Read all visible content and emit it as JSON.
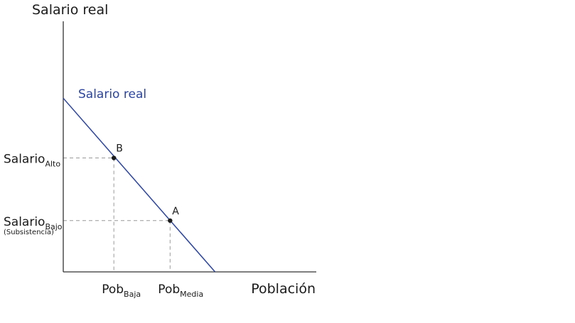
{
  "chart_data": {
    "type": "line",
    "title": "",
    "ylabel": "Salario real",
    "xlabel": "Población",
    "grid": false,
    "colors": {
      "line": "#2b44a0",
      "axis": "#333333",
      "guide": "#999999",
      "point": "#1a1a1a"
    },
    "series": [
      {
        "name": "Salario real",
        "x": [
          0,
          2.7
        ],
        "y": [
          3.05,
          0
        ]
      }
    ],
    "points": [
      {
        "label": "B",
        "x": 0.9,
        "y": 2.0
      },
      {
        "label": "A",
        "x": 1.9,
        "y": 0.9
      }
    ],
    "y_ticks": [
      {
        "main": "Salario",
        "sub": "Alto",
        "note": "",
        "y": 2.0
      },
      {
        "main": "Salario",
        "sub": "Bajo",
        "note": "(Subsistencia)",
        "y": 0.9
      }
    ],
    "x_ticks": [
      {
        "main": "Pob",
        "sub": "Baja",
        "x": 0.9
      },
      {
        "main": "Pob",
        "sub": "Media",
        "x": 1.9
      }
    ],
    "xlim": [
      0,
      4.5
    ],
    "ylim": [
      0,
      4.4
    ]
  }
}
